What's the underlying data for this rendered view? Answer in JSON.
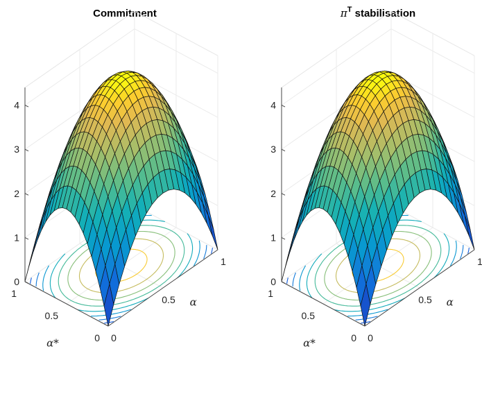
{
  "chart_data": [
    {
      "type": "surface",
      "title": "Commitment",
      "xlabel": "α",
      "ylabel": "α*",
      "zlabel": "",
      "xlim": [
        0,
        1
      ],
      "ylim": [
        0,
        1
      ],
      "zlim": [
        0,
        4.4
      ],
      "x_ticks": [
        "0",
        "0.5",
        "1"
      ],
      "y_ticks": [
        "0",
        "0.5",
        "1"
      ],
      "z_ticks": [
        "0",
        "1",
        "2",
        "3",
        "4"
      ],
      "surface": {
        "grid_size": 21,
        "description": "inverted-paraboloid surface, approx. z = 4.3 - 4.3*(x-0.5)^2*4... peak ~4.3 at center (0.5,0.5), ~2 along edges, 0 at (0,0)",
        "peak": 4.3,
        "edge_mid_value": 2.0,
        "corner_far_value": 0.0,
        "colormap": "parula"
      },
      "contour_levels": [
        0.5,
        1,
        1.5,
        2,
        2.5,
        3,
        3.5,
        4
      ],
      "grid": true
    },
    {
      "type": "surface",
      "title": "π",
      "title_sup": "T",
      "title_rest": " stabilisation",
      "xlabel": "α",
      "ylabel": "α*",
      "zlabel": "",
      "xlim": [
        0,
        1
      ],
      "ylim": [
        0,
        1
      ],
      "zlim": [
        0,
        4.4
      ],
      "x_ticks": [
        "0",
        "0.5",
        "1"
      ],
      "y_ticks": [
        "0",
        "0.5",
        "1"
      ],
      "z_ticks": [
        "0",
        "1",
        "2",
        "3",
        "4"
      ],
      "surface": {
        "grid_size": 21,
        "peak": 4.3,
        "edge_mid_value": 2.0,
        "corner_far_value": 0.0,
        "colormap": "parula"
      },
      "contour_levels": [
        0.5,
        1,
        1.5,
        2,
        2.5,
        3,
        3.5,
        4
      ],
      "grid": true
    }
  ]
}
